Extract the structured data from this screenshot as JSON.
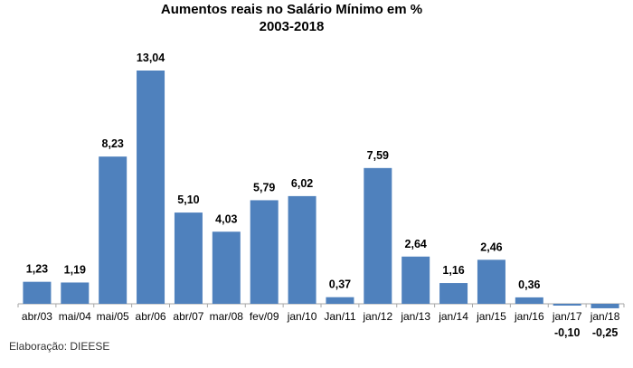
{
  "chart_data": {
    "type": "bar",
    "title": "Aumentos reais no Salário Mínimo em %",
    "subtitle": "2003-2018",
    "categories": [
      "abr/03",
      "mai/04",
      "mai/05",
      "abr/06",
      "abr/07",
      "mar/08",
      "fev/09",
      "jan/10",
      "Jan/11",
      "jan/12",
      "jan/13",
      "jan/14",
      "jan/15",
      "jan/16",
      "jan/17",
      "jan/18"
    ],
    "values": [
      1.23,
      1.19,
      8.23,
      13.04,
      5.1,
      4.03,
      5.79,
      6.02,
      0.37,
      7.59,
      2.64,
      1.16,
      2.46,
      0.36,
      -0.1,
      -0.25
    ],
    "data_labels": [
      "1,23",
      "1,19",
      "8,23",
      "13,04",
      "5,10",
      "4,03",
      "5,79",
      "6,02",
      "0,37",
      "7,59",
      "2,64",
      "1,16",
      "2,46",
      "0,36",
      "-0,10",
      "-0,25"
    ],
    "xlabel": "",
    "ylabel": "",
    "ylim": [
      -0.25,
      13.04
    ],
    "grid": false,
    "legend": "none",
    "bar_color": "#4F81BD",
    "axis_color": "#A6A6A6"
  },
  "footer": {
    "source": "Elaboração: DIEESE"
  }
}
